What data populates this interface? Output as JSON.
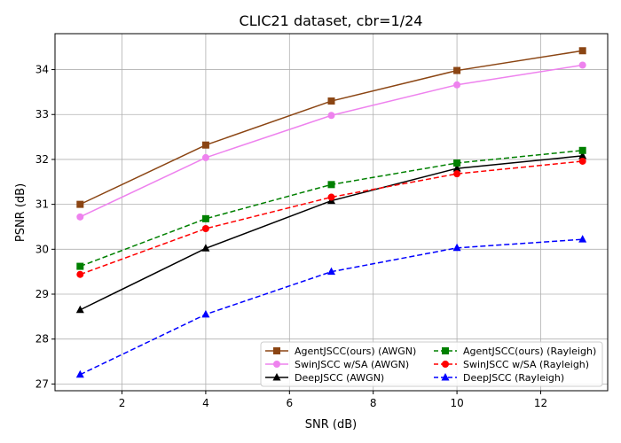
{
  "chart_data": {
    "type": "line",
    "title": "CLIC21 dataset, cbr=1/24",
    "xlabel": "SNR (dB)",
    "ylabel": "PSNR (dB)",
    "xlim": [
      0.4,
      13.6
    ],
    "ylim": [
      26.85,
      34.8
    ],
    "xticks": [
      2,
      4,
      6,
      8,
      10,
      12
    ],
    "yticks": [
      27,
      28,
      29,
      30,
      31,
      32,
      33,
      34
    ],
    "grid": true,
    "legend_position": "lower-right",
    "legend_columns": 2,
    "x": [
      1,
      4,
      7,
      10,
      13
    ],
    "series": [
      {
        "name": "AgentJSCC(ours) (AWGN)",
        "values": [
          31.0,
          32.32,
          33.3,
          33.98,
          34.42
        ],
        "color": "#8b4513",
        "dash": "solid",
        "marker": "square"
      },
      {
        "name": "SwinJSCC w/SA (AWGN)",
        "values": [
          30.72,
          32.04,
          32.98,
          33.66,
          34.1
        ],
        "color": "#ee82ee",
        "dash": "solid",
        "marker": "circle"
      },
      {
        "name": "DeepJSCC (AWGN)",
        "values": [
          28.65,
          30.02,
          31.08,
          31.8,
          32.08
        ],
        "color": "#000000",
        "dash": "solid",
        "marker": "triangle"
      },
      {
        "name": "AgentJSCC(ours) (Rayleigh)",
        "values": [
          29.62,
          30.68,
          31.44,
          31.92,
          32.2
        ],
        "color": "#008000",
        "dash": "dashed",
        "marker": "square"
      },
      {
        "name": "SwinJSCC w/SA (Rayleigh)",
        "values": [
          29.44,
          30.46,
          31.16,
          31.68,
          31.96
        ],
        "color": "#ff0000",
        "dash": "dashed",
        "marker": "circle"
      },
      {
        "name": "DeepJSCC (Rayleigh)",
        "values": [
          27.21,
          28.55,
          29.5,
          30.03,
          30.22
        ],
        "color": "#0000ff",
        "dash": "dashed",
        "marker": "triangle"
      }
    ]
  }
}
